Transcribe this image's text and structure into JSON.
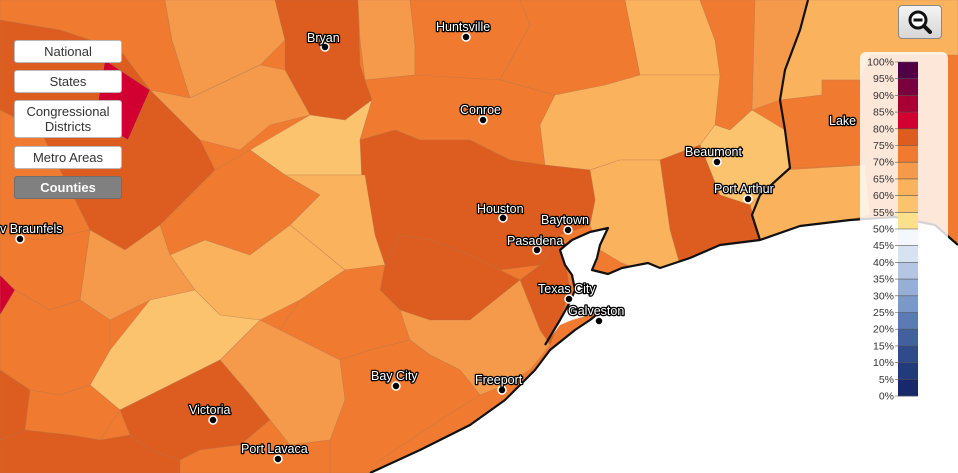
{
  "map": {
    "levels": [
      {
        "id": "national",
        "label": "National",
        "active": false
      },
      {
        "id": "states",
        "label": "States",
        "active": false
      },
      {
        "id": "congressional",
        "label": "Congressional Districts",
        "active": false
      },
      {
        "id": "metro",
        "label": "Metro Areas",
        "active": false
      },
      {
        "id": "counties",
        "label": "Counties",
        "active": true
      }
    ],
    "zoom_out_icon": "zoom-out-magnifier-icon",
    "cities": [
      {
        "id": "bryan",
        "name": "Bryan"
      },
      {
        "id": "huntsville",
        "name": "Huntsville"
      },
      {
        "id": "conroe",
        "name": "Conroe"
      },
      {
        "id": "beaumont",
        "name": "Beaumont"
      },
      {
        "id": "port-arthur",
        "name": "Port Arthur"
      },
      {
        "id": "lake-charles",
        "name": "Lake"
      },
      {
        "id": "houston",
        "name": "Houston"
      },
      {
        "id": "baytown",
        "name": "Baytown"
      },
      {
        "id": "pasadena",
        "name": "Pasadena"
      },
      {
        "id": "texas-city",
        "name": "Texas City"
      },
      {
        "id": "galveston",
        "name": "Galveston"
      },
      {
        "id": "new-braunfels",
        "name": "v Braunfels"
      },
      {
        "id": "bay-city",
        "name": "Bay City"
      },
      {
        "id": "freeport",
        "name": "Freeport"
      },
      {
        "id": "victoria",
        "name": "Victoria"
      },
      {
        "id": "port-lavaca",
        "name": "Port Lavaca"
      }
    ],
    "legend": {
      "labels": [
        "100%",
        "95%",
        "90%",
        "85%",
        "80%",
        "75%",
        "70%",
        "65%",
        "60%",
        "55%",
        "50%",
        "45%",
        "40%",
        "35%",
        "30%",
        "25%",
        "20%",
        "15%",
        "10%",
        "5%",
        "0%"
      ],
      "colors": [
        "#520046",
        "#7a003d",
        "#a80035",
        "#d10030",
        "#dd5c1f",
        "#f07a30",
        "#f59a4a",
        "#fbb25c",
        "#fcc36f",
        "#fde08c",
        "#f4f7fc",
        "#d8e3f2",
        "#b4c6e4",
        "#96afd6",
        "#7a98c8",
        "#5a7bb3",
        "#41619e",
        "#2f4b8a",
        "#223b7a",
        "#18296b"
      ],
      "palette": {
        "dark_red": "#d10030",
        "dark_orange": "#dd5c1f",
        "orange": "#f07a30",
        "light_orange": "#f59a4a",
        "pale_orange": "#fbb25c",
        "tan": "#fcc36f"
      }
    }
  }
}
